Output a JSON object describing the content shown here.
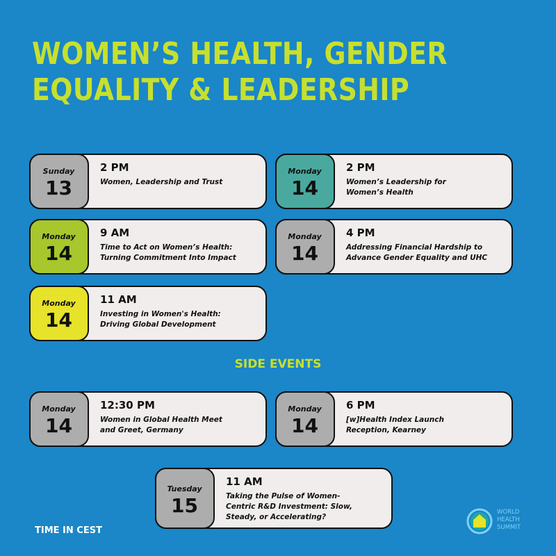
{
  "title": {
    "line1": "WOMEN’S HEALTH, GENDER",
    "line2": "EQUALITY & LEADERSHIP"
  },
  "colors": {
    "background": "#1b86c8",
    "accent": "#c7e02e",
    "card": "#f1eded",
    "grey": "#adadad",
    "teal": "#4aa99e",
    "lime": "#a7c72c",
    "yellow": "#e7e22a"
  },
  "events": [
    {
      "day": "Sunday",
      "date": "13",
      "time": "2 PM",
      "desc": "Women, Leadership and Trust",
      "color": "#adadad"
    },
    {
      "day": "Monday",
      "date": "14",
      "time": "2 PM",
      "desc": "Women’s Leadership for\nWomen’s Health",
      "color": "#4aa99e"
    },
    {
      "day": "Monday",
      "date": "14",
      "time": "9 AM",
      "desc": "Time to Act on Women’s Health:\nTurning Commitment Into Impact",
      "color": "#a7c72c"
    },
    {
      "day": "Monday",
      "date": "14",
      "time": "4 PM",
      "desc": "Addressing Financial Hardship to\nAdvance Gender Equality and UHC",
      "color": "#adadad"
    },
    {
      "day": "Monday",
      "date": "14",
      "time": "11 AM",
      "desc": "Investing in Women's Health:\nDriving Global Development",
      "color": "#e7e22a"
    }
  ],
  "side_events_heading": "SIDE EVENTS",
  "side_events": [
    {
      "day": "Monday",
      "date": "14",
      "time": "12:30 PM",
      "desc": "Women in Global Health Meet\nand Greet, Germany",
      "color": "#adadad"
    },
    {
      "day": "Monday",
      "date": "14",
      "time": "6 PM",
      "desc": "[w]Health Index Launch\nReception, Kearney",
      "color": "#adadad"
    },
    {
      "day": "Tuesday",
      "date": "15",
      "time": "11 AM",
      "desc": "Taking the Pulse of Women-\nCentric R&D Investment: Slow,\nSteady, or Accelerating?",
      "color": "#adadad"
    }
  ],
  "footer_note": "TIME IN CEST",
  "logo": {
    "line1": "WORLD",
    "line2": "HEALTH",
    "line3": "SUMMIT",
    "icon": "world-health-summit-logo"
  }
}
